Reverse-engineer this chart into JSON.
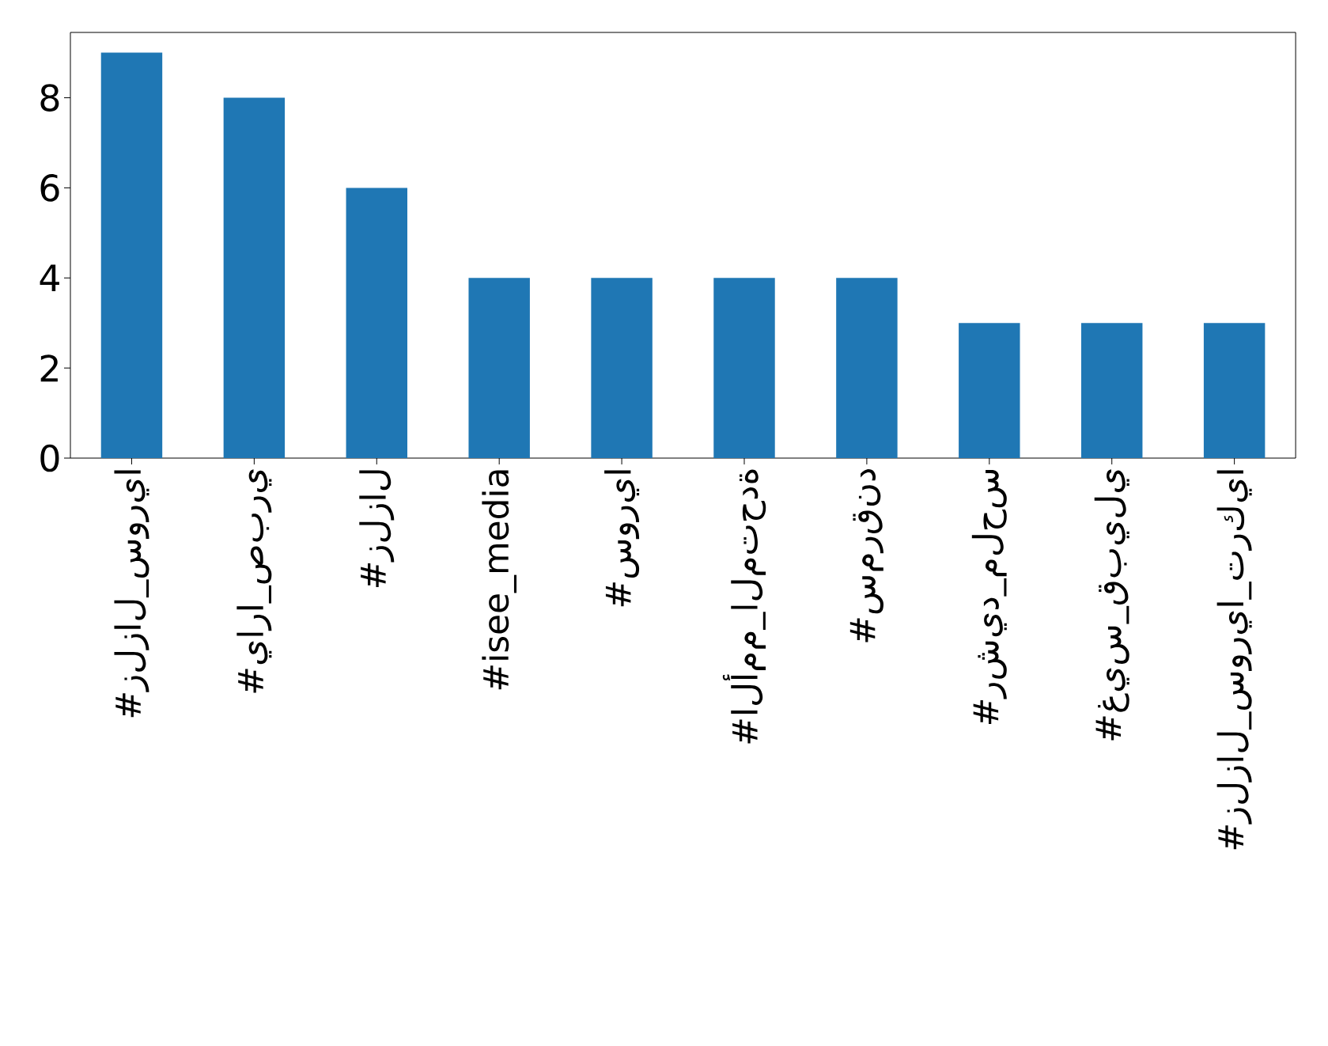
{
  "chart_data": {
    "type": "bar",
    "categories": [
      "#زلزال_سوريا",
      "#يارا_صبري",
      "#زلزال",
      "#isee_media",
      "#سوريا",
      "#الأمم_المتحدة",
      "#سمرقند",
      "#رشيد_ملحس",
      "#غيس_قبيلي",
      "#زلزال_سوريا_تركيا"
    ],
    "values": [
      9,
      8,
      6,
      4,
      4,
      4,
      4,
      3,
      3,
      3
    ],
    "color": "#1f77b4",
    "ylim": [
      0,
      9.45
    ],
    "yticks": [
      0,
      2,
      4,
      6,
      8
    ],
    "grid": false
  }
}
